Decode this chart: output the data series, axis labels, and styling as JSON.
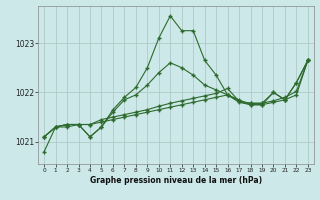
{
  "title": "Graphe pression niveau de la mer (hPa)",
  "bg_color": "#cce8e8",
  "grid_color": "#b0c8c8",
  "line_color": "#2d6a2d",
  "ylim": [
    1020.55,
    1023.75
  ],
  "yticks": [
    1021,
    1022,
    1023
  ],
  "xlim": [
    -0.5,
    23.5
  ],
  "xticks": [
    0,
    1,
    2,
    3,
    4,
    5,
    6,
    7,
    8,
    9,
    10,
    11,
    12,
    13,
    14,
    15,
    16,
    17,
    18,
    19,
    20,
    21,
    22,
    23
  ],
  "series": [
    {
      "x": [
        0,
        1,
        2,
        3,
        4,
        5,
        6,
        7,
        8,
        9,
        10,
        11,
        12,
        13,
        14,
        15,
        16,
        17,
        18,
        19,
        20,
        21,
        22,
        23
      ],
      "y": [
        1020.8,
        1021.3,
        1021.3,
        1021.35,
        1021.1,
        1021.3,
        1021.65,
        1021.9,
        1022.1,
        1022.5,
        1023.1,
        1023.55,
        1023.25,
        1023.25,
        1022.65,
        1022.35,
        1021.95,
        1021.85,
        1021.75,
        1021.75,
        1022.0,
        1021.85,
        1022.2,
        1022.65
      ]
    },
    {
      "x": [
        0,
        1,
        2,
        3,
        4,
        5,
        6,
        7,
        8,
        9,
        10,
        11,
        12,
        13,
        14,
        15,
        16,
        17,
        18,
        19,
        20,
        21,
        22,
        23
      ],
      "y": [
        1021.1,
        1021.3,
        1021.35,
        1021.35,
        1021.35,
        1021.4,
        1021.45,
        1021.5,
        1021.55,
        1021.6,
        1021.65,
        1021.7,
        1021.75,
        1021.8,
        1021.85,
        1021.9,
        1021.95,
        1021.8,
        1021.75,
        1021.75,
        1021.8,
        1021.85,
        1021.95,
        1022.65
      ]
    },
    {
      "x": [
        0,
        1,
        2,
        3,
        4,
        5,
        6,
        7,
        8,
        9,
        10,
        11,
        12,
        13,
        14,
        15,
        16,
        17,
        18,
        19,
        20,
        21,
        22,
        23
      ],
      "y": [
        1021.1,
        1021.3,
        1021.35,
        1021.35,
        1021.35,
        1021.45,
        1021.5,
        1021.55,
        1021.6,
        1021.65,
        1021.72,
        1021.78,
        1021.83,
        1021.88,
        1021.93,
        1021.98,
        1022.08,
        1021.82,
        1021.78,
        1021.78,
        1021.83,
        1021.9,
        1022.02,
        1022.65
      ]
    },
    {
      "x": [
        0,
        1,
        2,
        3,
        4,
        5,
        6,
        7,
        8,
        9,
        10,
        11,
        12,
        13,
        14,
        15,
        16,
        17,
        18,
        19,
        20,
        21,
        22,
        23
      ],
      "y": [
        1021.1,
        1021.3,
        1021.35,
        1021.35,
        1021.1,
        1021.3,
        1021.6,
        1021.85,
        1021.95,
        1022.15,
        1022.4,
        1022.6,
        1022.5,
        1022.35,
        1022.15,
        1022.05,
        1021.95,
        1021.82,
        1021.78,
        1021.78,
        1022.0,
        1021.85,
        1022.2,
        1022.65
      ]
    }
  ]
}
